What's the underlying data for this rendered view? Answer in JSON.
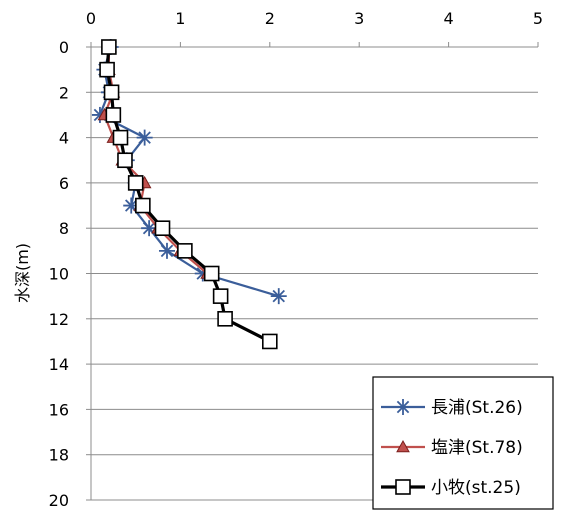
{
  "chart_data": {
    "type": "line",
    "title": "",
    "xlabel": "",
    "ylabel": "水深(m)",
    "xlim": [
      0,
      5
    ],
    "ylim": [
      0,
      20
    ],
    "x_axis_position": "top",
    "y_axis_inverted": true,
    "x_ticks": [
      "0",
      "1",
      "2",
      "3",
      "4",
      "5"
    ],
    "y_ticks": [
      "0",
      "2",
      "4",
      "6",
      "8",
      "10",
      "12",
      "14",
      "16",
      "18",
      "20"
    ],
    "grid": "horizontal",
    "legend_position": "bottom-right",
    "series": [
      {
        "name": "長浦(St.26)",
        "color": "#3B5E9A",
        "marker": "star",
        "points": [
          [
            0.22,
            0
          ],
          [
            0.15,
            1
          ],
          [
            0.2,
            2
          ],
          [
            0.1,
            3
          ],
          [
            0.6,
            4
          ],
          [
            0.4,
            5
          ],
          [
            0.5,
            6
          ],
          [
            0.45,
            7
          ],
          [
            0.65,
            8
          ],
          [
            0.85,
            9
          ],
          [
            1.25,
            10
          ],
          [
            2.1,
            11
          ]
        ]
      },
      {
        "name": "塩津(St.78)",
        "color": "#C0504D",
        "marker": "triangle",
        "points": [
          [
            0.2,
            0
          ],
          [
            0.2,
            1
          ],
          [
            0.25,
            2
          ],
          [
            0.15,
            3
          ],
          [
            0.25,
            4
          ],
          [
            0.35,
            5
          ],
          [
            0.6,
            6
          ],
          [
            0.55,
            7
          ],
          [
            0.75,
            8
          ],
          [
            1.0,
            9
          ],
          [
            1.3,
            10
          ]
        ]
      },
      {
        "name": "小牧(st.25)",
        "color": "#000000",
        "marker": "square",
        "points": [
          [
            0.2,
            0
          ],
          [
            0.18,
            1
          ],
          [
            0.23,
            2
          ],
          [
            0.25,
            3
          ],
          [
            0.33,
            4
          ],
          [
            0.38,
            5
          ],
          [
            0.5,
            6
          ],
          [
            0.58,
            7
          ],
          [
            0.8,
            8
          ],
          [
            1.05,
            9
          ],
          [
            1.35,
            10
          ],
          [
            1.45,
            11
          ],
          [
            1.5,
            12
          ],
          [
            2.0,
            13
          ]
        ]
      }
    ]
  }
}
